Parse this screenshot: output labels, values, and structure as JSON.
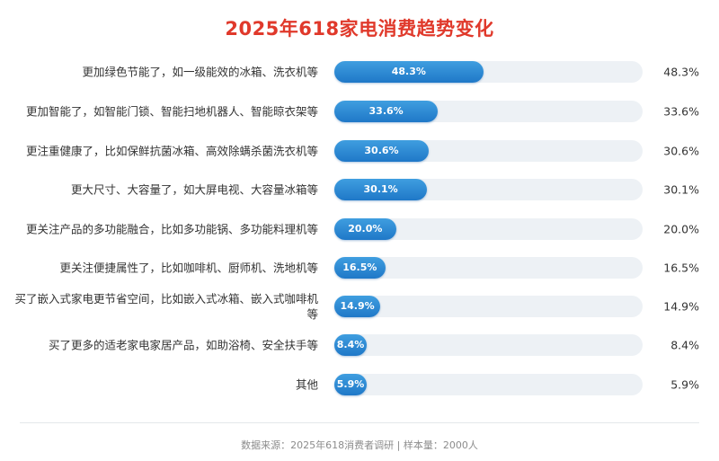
{
  "chart_data": {
    "type": "bar",
    "orientation": "horizontal",
    "title": "2025年618家电消费趋势变化",
    "categories": [
      "更加绿色节能了，如一级能效的冰箱、洗衣机等",
      "更加智能了，如智能门锁、智能扫地机器人、智能晾衣架等",
      "更注重健康了，比如保鲜抗菌冰箱、高效除螨杀菌洗衣机等",
      "更大尺寸、大容量了，如大屏电视、大容量冰箱等",
      "更关注产品的多功能融合，比如多功能锅、多功能料理机等",
      "更关注便捷属性了，比如咖啡机、厨师机、洗地机等",
      "买了嵌入式家电更节省空间，比如嵌入式冰箱、嵌入式咖啡机等",
      "买了更多的适老家电家居产品，如助浴椅、安全扶手等",
      "其他"
    ],
    "values": [
      48.3,
      33.6,
      30.6,
      30.1,
      20.0,
      16.5,
      14.9,
      8.4,
      5.9
    ],
    "value_labels": [
      "48.3%",
      "33.6%",
      "30.6%",
      "30.1%",
      "20.0%",
      "16.5%",
      "14.9%",
      "8.4%",
      "5.9%"
    ],
    "xlim": [
      0,
      100
    ],
    "grid": false,
    "legend": "none",
    "colors": {
      "bar": "#2d8ad6",
      "track": "#edf1f5",
      "title": "#e0392b"
    }
  },
  "footer": {
    "source": "数据来源：2025年618消费者调研 | 样本量：2000人"
  }
}
